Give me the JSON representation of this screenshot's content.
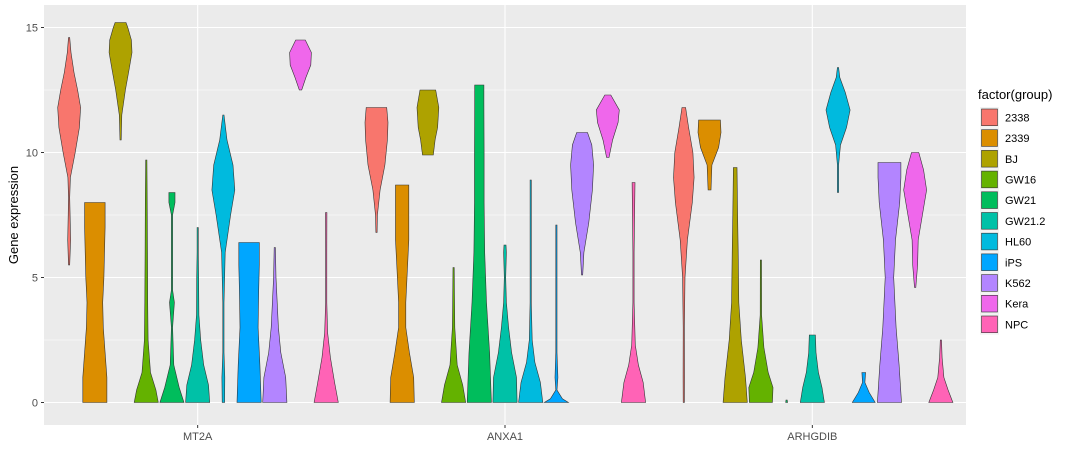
{
  "chart_data": {
    "type": "violin",
    "xlabel": "",
    "ylabel": "Gene expression",
    "ylim": [
      -0.9,
      15.9
    ],
    "yticks": [
      0,
      5,
      10,
      15
    ],
    "categories": [
      "MT2A",
      "ANXA1",
      "ARHGDIB"
    ],
    "legend": {
      "title": "factor(group)",
      "position": "right",
      "entries": [
        {
          "name": "2338",
          "color": "#F8766D"
        },
        {
          "name": "2339",
          "color": "#DB8E00"
        },
        {
          "name": "BJ",
          "color": "#AEA200"
        },
        {
          "name": "GW16",
          "color": "#64B200"
        },
        {
          "name": "GW21",
          "color": "#00BD5C"
        },
        {
          "name": "GW21.2",
          "color": "#00C1A7"
        },
        {
          "name": "HL60",
          "color": "#00BADE"
        },
        {
          "name": "iPS",
          "color": "#00A6FF"
        },
        {
          "name": "K562",
          "color": "#B385FF"
        },
        {
          "name": "Kera",
          "color": "#EF67EB"
        },
        {
          "name": "NPC",
          "color": "#FF63B6"
        }
      ]
    },
    "grid": true,
    "violins": [
      {
        "gene": "MT2A",
        "group": "2338",
        "min": 5.5,
        "max": 14.6,
        "profile": [
          [
            5.5,
            0.02
          ],
          [
            6.5,
            0.12
          ],
          [
            7.5,
            0.08
          ],
          [
            8.2,
            0.03
          ],
          [
            9,
            0.1
          ],
          [
            10,
            0.5
          ],
          [
            11,
            0.85
          ],
          [
            11.8,
            0.95
          ],
          [
            12.5,
            0.7
          ],
          [
            13.2,
            0.4
          ],
          [
            14,
            0.15
          ],
          [
            14.6,
            0.03
          ]
        ]
      },
      {
        "gene": "MT2A",
        "group": "2339",
        "min": 0,
        "max": 8.0,
        "profile": [
          [
            0,
            1
          ],
          [
            1,
            1
          ],
          [
            2,
            0.85
          ],
          [
            3,
            0.7
          ],
          [
            4,
            0.65
          ],
          [
            5,
            0.75
          ],
          [
            6,
            0.8
          ],
          [
            7,
            0.85
          ],
          [
            7.6,
            0.85
          ],
          [
            8,
            0.85
          ]
        ]
      },
      {
        "gene": "MT2A",
        "group": "BJ",
        "min": 10.5,
        "max": 15.2,
        "profile": [
          [
            10.5,
            0.03
          ],
          [
            11.5,
            0.1
          ],
          [
            12.5,
            0.4
          ],
          [
            13.3,
            0.7
          ],
          [
            14,
            0.95
          ],
          [
            14.5,
            0.9
          ],
          [
            15,
            0.6
          ],
          [
            15.2,
            0.45
          ]
        ]
      },
      {
        "gene": "MT2A",
        "group": "GW16",
        "min": 0,
        "max": 9.7,
        "profile": [
          [
            0,
            1
          ],
          [
            0.5,
            0.8
          ],
          [
            1.2,
            0.35
          ],
          [
            2.5,
            0.15
          ],
          [
            4,
            0.12
          ],
          [
            6,
            0.1
          ],
          [
            8,
            0.08
          ],
          [
            9.7,
            0.05
          ]
        ]
      },
      {
        "gene": "MT2A",
        "group": "GW21",
        "min": 0,
        "max": 8.4,
        "profile": [
          [
            0,
            1
          ],
          [
            0.6,
            0.6
          ],
          [
            1.5,
            0.15
          ],
          [
            3,
            0.05
          ],
          [
            4,
            0.2
          ],
          [
            4.5,
            0.05
          ],
          [
            6,
            0.05
          ],
          [
            7.5,
            0.05
          ],
          [
            8,
            0.25
          ],
          [
            8.4,
            0.25
          ]
        ]
      },
      {
        "gene": "MT2A",
        "group": "GW21.2",
        "min": 0,
        "max": 7.0,
        "profile": [
          [
            0,
            1
          ],
          [
            0.7,
            0.9
          ],
          [
            1.5,
            0.5
          ],
          [
            2.5,
            0.25
          ],
          [
            3.5,
            0.1
          ],
          [
            5,
            0.08
          ],
          [
            6,
            0.05
          ],
          [
            7,
            0.05
          ]
        ]
      },
      {
        "gene": "MT2A",
        "group": "HL60",
        "min": 0,
        "max": 11.5,
        "profile": [
          [
            0,
            0.1
          ],
          [
            1,
            0.12
          ],
          [
            2,
            0.05
          ],
          [
            4,
            0.05
          ],
          [
            6,
            0.15
          ],
          [
            7.5,
            0.6
          ],
          [
            8.5,
            0.95
          ],
          [
            9.5,
            0.8
          ],
          [
            10.5,
            0.3
          ],
          [
            11.5,
            0.05
          ]
        ]
      },
      {
        "gene": "MT2A",
        "group": "iPS",
        "min": 0,
        "max": 6.4,
        "profile": [
          [
            0,
            1
          ],
          [
            1.5,
            0.9
          ],
          [
            3,
            0.75
          ],
          [
            4.5,
            0.8
          ],
          [
            5.5,
            0.85
          ],
          [
            6,
            0.85
          ],
          [
            6.4,
            0.85
          ]
        ]
      },
      {
        "gene": "MT2A",
        "group": "K562",
        "min": 0,
        "max": 6.2,
        "profile": [
          [
            0,
            1
          ],
          [
            1,
            0.9
          ],
          [
            2,
            0.5
          ],
          [
            3,
            0.3
          ],
          [
            4,
            0.2
          ],
          [
            5,
            0.1
          ],
          [
            6.2,
            0.05
          ]
        ]
      },
      {
        "gene": "MT2A",
        "group": "Kera",
        "min": 12.5,
        "max": 14.5,
        "profile": [
          [
            12.5,
            0.1
          ],
          [
            13,
            0.45
          ],
          [
            13.5,
            0.85
          ],
          [
            14,
            0.9
          ],
          [
            14.5,
            0.4
          ]
        ]
      },
      {
        "gene": "MT2A",
        "group": "NPC",
        "min": 0,
        "max": 7.6,
        "profile": [
          [
            0,
            1
          ],
          [
            0.8,
            0.7
          ],
          [
            1.8,
            0.35
          ],
          [
            2.8,
            0.12
          ],
          [
            4,
            0.05
          ],
          [
            6,
            0.05
          ],
          [
            7.6,
            0.06
          ]
        ]
      },
      {
        "gene": "ANXA1",
        "group": "2338",
        "min": 6.8,
        "max": 11.8,
        "profile": [
          [
            6.8,
            0.03
          ],
          [
            7.5,
            0.08
          ],
          [
            8.5,
            0.3
          ],
          [
            9.5,
            0.7
          ],
          [
            10.5,
            0.9
          ],
          [
            11.2,
            0.95
          ],
          [
            11.8,
            0.85
          ]
        ]
      },
      {
        "gene": "ANXA1",
        "group": "2339",
        "min": 0,
        "max": 8.7,
        "profile": [
          [
            0,
            1
          ],
          [
            1,
            0.95
          ],
          [
            2,
            0.6
          ],
          [
            3,
            0.3
          ],
          [
            4,
            0.3
          ],
          [
            5,
            0.4
          ],
          [
            6.5,
            0.55
          ],
          [
            7.5,
            0.55
          ],
          [
            8.7,
            0.55
          ]
        ]
      },
      {
        "gene": "ANXA1",
        "group": "BJ",
        "min": 9.9,
        "max": 12.5,
        "profile": [
          [
            9.9,
            0.45
          ],
          [
            10.5,
            0.6
          ],
          [
            11,
            0.8
          ],
          [
            11.8,
            0.9
          ],
          [
            12.5,
            0.65
          ]
        ]
      },
      {
        "gene": "ANXA1",
        "group": "GW16",
        "min": 0,
        "max": 5.4,
        "profile": [
          [
            0,
            1
          ],
          [
            0.7,
            0.75
          ],
          [
            1.5,
            0.3
          ],
          [
            3,
            0.1
          ],
          [
            5.4,
            0.03
          ]
        ]
      },
      {
        "gene": "ANXA1",
        "group": "GW21",
        "min": 0,
        "max": 12.7,
        "profile": [
          [
            0,
            1
          ],
          [
            2,
            0.85
          ],
          [
            4,
            0.6
          ],
          [
            6,
            0.45
          ],
          [
            8,
            0.4
          ],
          [
            10,
            0.4
          ],
          [
            12,
            0.38
          ],
          [
            12.7,
            0.38
          ]
        ]
      },
      {
        "gene": "ANXA1",
        "group": "GW21.2",
        "min": 0,
        "max": 6.3,
        "profile": [
          [
            0,
            1
          ],
          [
            1,
            0.95
          ],
          [
            2,
            0.55
          ],
          [
            3,
            0.3
          ],
          [
            4,
            0.12
          ],
          [
            5,
            0.06
          ],
          [
            6,
            0.12
          ],
          [
            6.3,
            0.08
          ]
        ]
      },
      {
        "gene": "ANXA1",
        "group": "HL60",
        "min": 0,
        "max": 8.9,
        "profile": [
          [
            0,
            1
          ],
          [
            0.8,
            0.8
          ],
          [
            1.6,
            0.35
          ],
          [
            2.5,
            0.12
          ],
          [
            4,
            0.05
          ],
          [
            6,
            0.03
          ],
          [
            8.9,
            0.02
          ]
        ]
      },
      {
        "gene": "ANXA1",
        "group": "iPS",
        "min": 0,
        "max": 7.1,
        "profile": [
          [
            0,
            1
          ],
          [
            0.15,
            0.5
          ],
          [
            0.5,
            0.04
          ],
          [
            1,
            0.12
          ],
          [
            2,
            0.03
          ],
          [
            4,
            0.02
          ],
          [
            7.1,
            0.02
          ]
        ]
      },
      {
        "gene": "ANXA1",
        "group": "K562",
        "min": 5.1,
        "max": 10.8,
        "profile": [
          [
            5.1,
            0.03
          ],
          [
            6,
            0.15
          ],
          [
            7.2,
            0.55
          ],
          [
            8.5,
            0.85
          ],
          [
            9.5,
            0.95
          ],
          [
            10.3,
            0.8
          ],
          [
            10.8,
            0.45
          ]
        ]
      },
      {
        "gene": "ANXA1",
        "group": "Kera",
        "min": 9.8,
        "max": 12.3,
        "profile": [
          [
            9.8,
            0.1
          ],
          [
            10.5,
            0.4
          ],
          [
            11.2,
            0.85
          ],
          [
            11.7,
            0.95
          ],
          [
            12.3,
            0.25
          ]
        ]
      },
      {
        "gene": "ANXA1",
        "group": "NPC",
        "min": 0,
        "max": 8.8,
        "profile": [
          [
            0,
            1
          ],
          [
            0.8,
            0.8
          ],
          [
            1.5,
            0.4
          ],
          [
            2.3,
            0.15
          ],
          [
            4,
            0.05
          ],
          [
            6,
            0.05
          ],
          [
            8.8,
            0.12
          ]
        ]
      },
      {
        "gene": "ARHGDIB",
        "group": "2338",
        "min": 0,
        "max": 11.8,
        "profile": [
          [
            0,
            0.05
          ],
          [
            1,
            0.06
          ],
          [
            3,
            0.05
          ],
          [
            5,
            0.1
          ],
          [
            6.5,
            0.3
          ],
          [
            8,
            0.7
          ],
          [
            9,
            0.85
          ],
          [
            10,
            0.75
          ],
          [
            11,
            0.4
          ],
          [
            11.8,
            0.15
          ]
        ]
      },
      {
        "gene": "ARHGDIB",
        "group": "2339",
        "min": 8.5,
        "max": 11.3,
        "profile": [
          [
            8.5,
            0.12
          ],
          [
            9.5,
            0.2
          ],
          [
            10.2,
            0.75
          ],
          [
            10.8,
            0.95
          ],
          [
            11.3,
            0.9
          ]
        ]
      },
      {
        "gene": "ARHGDIB",
        "group": "BJ",
        "min": 0,
        "max": 9.4,
        "profile": [
          [
            0,
            1
          ],
          [
            1,
            0.85
          ],
          [
            2.5,
            0.5
          ],
          [
            4,
            0.3
          ],
          [
            6,
            0.25
          ],
          [
            7.5,
            0.2
          ],
          [
            9.4,
            0.15
          ]
        ]
      },
      {
        "gene": "ARHGDIB",
        "group": "GW16",
        "min": 0,
        "max": 5.7,
        "profile": [
          [
            0,
            0.95
          ],
          [
            0.6,
            1
          ],
          [
            1.2,
            0.6
          ],
          [
            2.2,
            0.25
          ],
          [
            3.5,
            0.06
          ],
          [
            5.7,
            0.04
          ]
        ]
      },
      {
        "gene": "ARHGDIB",
        "group": "GW21",
        "min": 0,
        "max": 0.1,
        "profile": [
          [
            0,
            0.08
          ],
          [
            0.1,
            0.04
          ]
        ]
      },
      {
        "gene": "ARHGDIB",
        "group": "GW21.2",
        "min": 0,
        "max": 2.7,
        "profile": [
          [
            0,
            1
          ],
          [
            0.6,
            0.8
          ],
          [
            1.2,
            0.5
          ],
          [
            2,
            0.3
          ],
          [
            2.7,
            0.25
          ]
        ]
      },
      {
        "gene": "ARHGDIB",
        "group": "HL60",
        "min": 8.4,
        "max": 13.4,
        "profile": [
          [
            8.4,
            0.02
          ],
          [
            9.5,
            0.05
          ],
          [
            10.3,
            0.2
          ],
          [
            11,
            0.7
          ],
          [
            11.7,
            1
          ],
          [
            12.4,
            0.6
          ],
          [
            13,
            0.15
          ],
          [
            13.4,
            0.05
          ]
        ]
      },
      {
        "gene": "ARHGDIB",
        "group": "iPS",
        "min": 0,
        "max": 1.2,
        "profile": [
          [
            0,
            0.95
          ],
          [
            0.4,
            0.45
          ],
          [
            0.8,
            0.1
          ],
          [
            1.2,
            0.15
          ]
        ]
      },
      {
        "gene": "ARHGDIB",
        "group": "K562",
        "min": 0,
        "max": 9.6,
        "profile": [
          [
            0,
            1
          ],
          [
            1.5,
            0.8
          ],
          [
            3,
            0.55
          ],
          [
            5,
            0.35
          ],
          [
            6.5,
            0.5
          ],
          [
            8,
            0.85
          ],
          [
            9,
            0.95
          ],
          [
            9.6,
            0.95
          ]
        ]
      },
      {
        "gene": "ARHGDIB",
        "group": "Kera",
        "min": 4.6,
        "max": 10.0,
        "profile": [
          [
            4.6,
            0.05
          ],
          [
            5.5,
            0.2
          ],
          [
            6.5,
            0.25
          ],
          [
            7.5,
            0.6
          ],
          [
            8.5,
            0.95
          ],
          [
            9.3,
            0.7
          ],
          [
            10,
            0.3
          ]
        ]
      },
      {
        "gene": "ARHGDIB",
        "group": "NPC",
        "min": 0,
        "max": 2.5,
        "profile": [
          [
            0,
            1
          ],
          [
            0.5,
            0.6
          ],
          [
            1,
            0.25
          ],
          [
            1.8,
            0.1
          ],
          [
            2.5,
            0.05
          ]
        ]
      }
    ]
  }
}
